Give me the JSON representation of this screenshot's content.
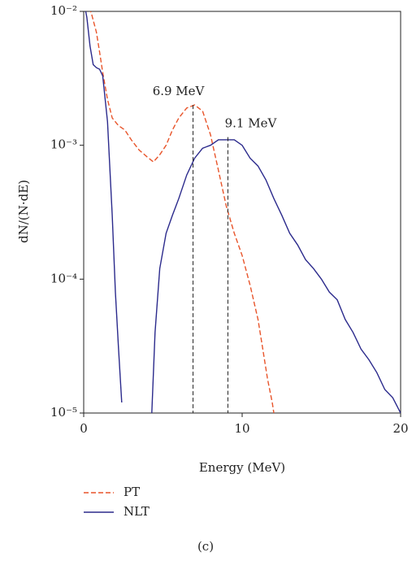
{
  "chart_data": {
    "type": "line",
    "x_label": "Energy (MeV)",
    "y_label": "dN/(N·dE)",
    "caption": "(c)",
    "log_y": true,
    "legend": "below",
    "xlim": [
      0,
      20
    ],
    "xticks": [
      0,
      10,
      20
    ],
    "ylim": [
      1e-05,
      0.01
    ],
    "yticks": [
      {
        "value": 1e-05,
        "label": "10⁻⁵"
      },
      {
        "value": 0.0001,
        "label": "10⁻⁴"
      },
      {
        "value": 0.001,
        "label": "10⁻³"
      },
      {
        "value": 0.01,
        "label": "10⁻²"
      }
    ],
    "series": [
      {
        "name": "PT",
        "color": "#e8542a",
        "dashed": true,
        "x": [
          0.2,
          0.5,
          0.8,
          1.0,
          1.2,
          1.5,
          1.8,
          2.2,
          2.6,
          3.0,
          3.5,
          4.0,
          4.4,
          4.8,
          5.2,
          5.6,
          6.0,
          6.5,
          7.0,
          7.5,
          8.0,
          8.5,
          9.0,
          9.5,
          10.0,
          10.5,
          11.0,
          11.3,
          11.6,
          11.9,
          12.0
        ],
        "values": [
          0.012,
          0.0095,
          0.007,
          0.005,
          0.0035,
          0.0022,
          0.0016,
          0.0014,
          0.0013,
          0.0011,
          0.00092,
          0.00082,
          0.00075,
          0.00085,
          0.001,
          0.0013,
          0.0016,
          0.0019,
          0.002,
          0.0018,
          0.0012,
          0.00065,
          0.00035,
          0.00022,
          0.00015,
          9e-05,
          5e-05,
          3e-05,
          1.8e-05,
          1.2e-05,
          1e-05
        ]
      },
      {
        "name": "NLT",
        "color": "#2b2a8c",
        "dashed": false,
        "x": [
          0.0,
          0.2,
          0.4,
          0.6,
          0.8,
          1.0,
          1.2,
          1.5,
          1.8,
          2.0,
          2.2,
          2.4,
          3.3,
          4.3,
          4.5,
          4.8,
          5.2,
          5.6,
          6.0,
          6.5,
          7.0,
          7.5,
          8.0,
          8.5,
          9.0,
          9.5,
          10.0,
          10.5,
          11.0,
          11.5,
          12.0,
          12.5,
          13.0,
          13.5,
          14.0,
          14.5,
          15.0,
          15.5,
          16.0,
          16.5,
          17.0,
          17.5,
          18.0,
          18.5,
          19.0,
          19.5,
          20.0
        ],
        "values": [
          0.012,
          0.009,
          0.0055,
          0.004,
          0.0038,
          0.0037,
          0.0033,
          0.0015,
          0.0003,
          8e-05,
          3e-05,
          1.2e-05,
          null,
          1e-05,
          4e-05,
          0.00012,
          0.00022,
          0.0003,
          0.0004,
          0.0006,
          0.0008,
          0.00095,
          0.001,
          0.0011,
          0.0011,
          0.0011,
          0.001,
          0.0008,
          0.0007,
          0.00055,
          0.0004,
          0.0003,
          0.00022,
          0.00018,
          0.00014,
          0.00012,
          0.0001,
          8e-05,
          7e-05,
          5e-05,
          4e-05,
          3e-05,
          2.5e-05,
          2e-05,
          1.5e-05,
          1.3e-05,
          1e-05
        ]
      }
    ],
    "annotations": [
      {
        "text": "6.9 MeV",
        "x": 6.9,
        "y": 0.002
      },
      {
        "text": "9.1 MeV",
        "x": 9.1,
        "y": 0.00115
      }
    ]
  }
}
